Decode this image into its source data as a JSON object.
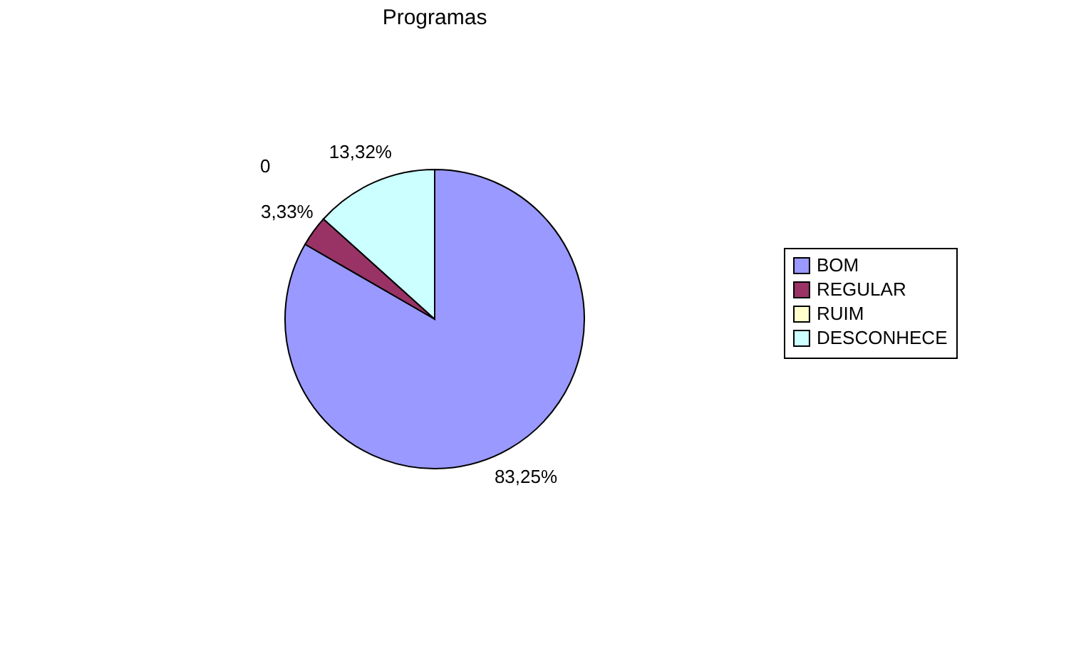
{
  "chart_data": {
    "type": "pie",
    "title": "Programas",
    "categories": [
      "BOM",
      "REGULAR",
      "RUIM",
      "DESCONHECE"
    ],
    "values": [
      83.25,
      3.33,
      0,
      13.32
    ],
    "value_labels": [
      "83,25%",
      "3,33%",
      "0",
      "13,32%"
    ],
    "colors": [
      "#9999ff",
      "#993366",
      "#ffffcc",
      "#ccffff"
    ],
    "legend": "right"
  }
}
